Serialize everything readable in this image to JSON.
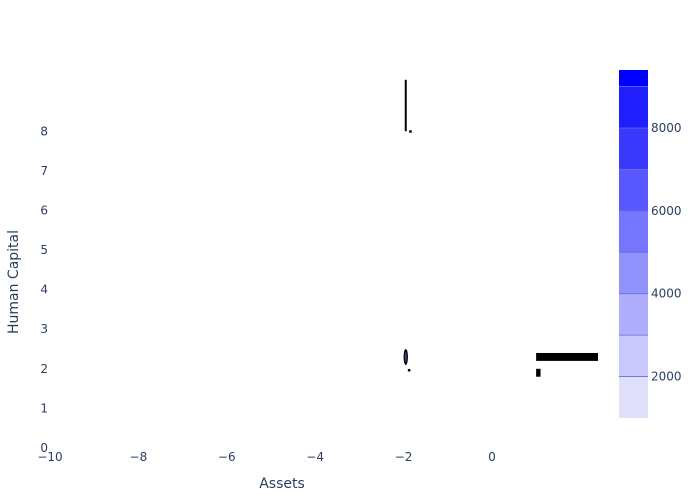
{
  "chart_data": {
    "type": "heatmap",
    "title": "",
    "xlabel": "Assets",
    "ylabel": "Human Capital",
    "xlim": [
      -10,
      2.4
    ],
    "ylim": [
      0,
      9.8
    ],
    "x_ticks": [
      -10,
      -8,
      -6,
      -4,
      -2,
      0
    ],
    "x_tick_labels": [
      "−10",
      "−8",
      "−6",
      "−4",
      "−2",
      "0"
    ],
    "y_ticks": [
      0,
      1,
      2,
      3,
      4,
      5,
      6,
      7,
      8
    ],
    "y_tick_labels": [
      "0",
      "1",
      "2",
      "3",
      "4",
      "5",
      "6",
      "7",
      "8"
    ],
    "grid": false,
    "marks": [
      {
        "kind": "line",
        "name": "vertical-stem",
        "x": [
          -1.95,
          -1.95
        ],
        "y": [
          8.0,
          9.3
        ]
      },
      {
        "kind": "dot",
        "name": "small-dot-top",
        "x": -1.85,
        "y": 8.0
      },
      {
        "kind": "ellipse",
        "name": "contour-blob",
        "x": -1.95,
        "y": 2.3
      },
      {
        "kind": "dot",
        "name": "small-dot-bottom",
        "x": -1.88,
        "y": 1.97
      },
      {
        "kind": "bar",
        "name": "thick-bar",
        "x": [
          1.0,
          2.4
        ],
        "y": [
          2.2,
          2.4
        ]
      },
      {
        "kind": "bar",
        "name": "small-square",
        "x": [
          1.0,
          1.1
        ],
        "y": [
          1.8,
          2.0
        ]
      }
    ],
    "colorbar": {
      "tick_values": [
        2000,
        4000,
        6000,
        8000
      ],
      "tick_labels": [
        "2000",
        "4000",
        "6000",
        "8000"
      ],
      "min": 1000,
      "max": 9400,
      "levels": [
        1000,
        2000,
        3000,
        4000,
        5000,
        6000,
        7000,
        8000,
        9000,
        9400
      ],
      "colors": [
        "#e0e0fb",
        "#c8c8fd",
        "#aeaefd",
        "#9292fd",
        "#7575fd",
        "#5858fe",
        "#3a3afe",
        "#1e1efe",
        "#0000ff"
      ]
    }
  }
}
